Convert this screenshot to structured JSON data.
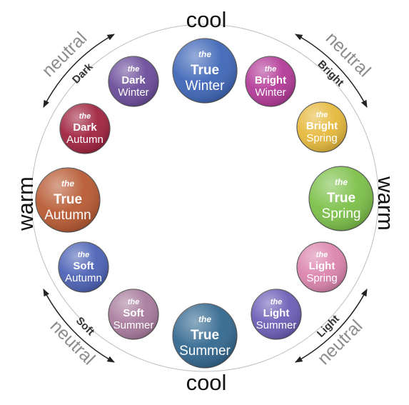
{
  "axes": {
    "top": "cool",
    "bottom": "cool",
    "left": "warm",
    "right": "warm"
  },
  "diagonals": {
    "top_left": {
      "outer": "neutral",
      "inner": "Dark"
    },
    "top_right": {
      "outer": "neutral",
      "inner": "Bright"
    },
    "bottom_left": {
      "outer": "neutral",
      "inner": "Soft"
    },
    "bottom_right": {
      "outer": "neutral",
      "inner": "Light"
    }
  },
  "seasons": [
    {
      "id": "true-winter",
      "article": "the",
      "modifier": "True",
      "season": "Winter",
      "color": "#3f67b8",
      "major": true
    },
    {
      "id": "bright-winter",
      "article": "the",
      "modifier": "Bright",
      "season": "Winter",
      "color": "#b33a97",
      "major": false
    },
    {
      "id": "bright-spring",
      "article": "the",
      "modifier": "Bright",
      "season": "Spring",
      "color": "#e6b93c",
      "major": false
    },
    {
      "id": "true-spring",
      "article": "the",
      "modifier": "True",
      "season": "Spring",
      "color": "#7cc049",
      "major": true
    },
    {
      "id": "light-spring",
      "article": "the",
      "modifier": "Light",
      "season": "Spring",
      "color": "#db84ad",
      "major": false
    },
    {
      "id": "light-summer",
      "article": "the",
      "modifier": "Light",
      "season": "Summer",
      "color": "#6c5eb7",
      "major": false
    },
    {
      "id": "true-summer",
      "article": "the",
      "modifier": "True",
      "season": "Summer",
      "color": "#336890",
      "major": true
    },
    {
      "id": "soft-summer",
      "article": "the",
      "modifier": "Soft",
      "season": "Summer",
      "color": "#a87b9d",
      "major": false
    },
    {
      "id": "soft-autumn",
      "article": "the",
      "modifier": "Soft",
      "season": "Autumn",
      "color": "#4c62b6",
      "major": false
    },
    {
      "id": "true-autumn",
      "article": "the",
      "modifier": "True",
      "season": "Autumn",
      "color": "#b85a33",
      "major": true
    },
    {
      "id": "dark-autumn",
      "article": "the",
      "modifier": "Dark",
      "season": "Autumn",
      "color": "#a0233f",
      "major": false
    },
    {
      "id": "dark-winter",
      "article": "the",
      "modifier": "Dark",
      "season": "Winter",
      "color": "#6b4c9a",
      "major": false
    }
  ]
}
